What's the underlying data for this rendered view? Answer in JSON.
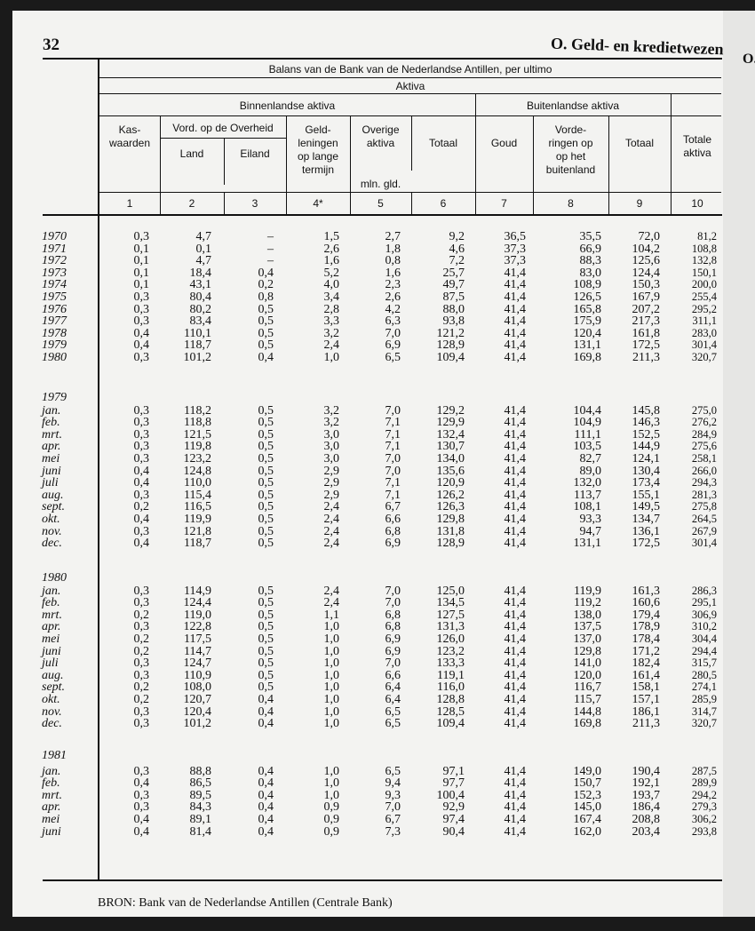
{
  "page_number": "32",
  "section_title": "O. Geld- en kredietwezen",
  "next_page_section": "O.",
  "table": {
    "title": "Balans van de Bank van de Nederlandse Antillen, per ultimo",
    "aktiva": "Aktiva",
    "binnenlandse": "Binnenlandse aktiva",
    "buitenlandse": "Buitenlandse aktiva",
    "kas": "Kas-\nwaarden",
    "vord": "Vord. op de Overheid",
    "land": "Land",
    "eiland": "Eiland",
    "geld": "Geld-\nleningen\nop lange\ntermijn",
    "overige": "Overige\naktiva",
    "totaal": "Totaal",
    "goud": "Goud",
    "vorderingen": "Vorde-\nringen op\nop het\nbuitenland",
    "totaal2": "Totaal",
    "totale": "Totale\naktiva",
    "unit": "mln. gld.",
    "col_numbers": [
      "1",
      "2",
      "3",
      "4*",
      "5",
      "6",
      "7",
      "8",
      "9",
      "10"
    ],
    "blocks": [
      {
        "label": "",
        "rows": [
          [
            "1970",
            "0,3",
            "4,7",
            "–",
            "1,5",
            "2,7",
            "9,2",
            "36,5",
            "35,5",
            "72,0",
            "81,2"
          ],
          [
            "1971",
            "0,1",
            "0,1",
            "–",
            "2,6",
            "1,8",
            "4,6",
            "37,3",
            "66,9",
            "104,2",
            "108,8"
          ],
          [
            "1972",
            "0,1",
            "4,7",
            "–",
            "1,6",
            "0,8",
            "7,2",
            "37,3",
            "88,3",
            "125,6",
            "132,8"
          ],
          [
            "1973",
            "0,1",
            "18,4",
            "0,4",
            "5,2",
            "1,6",
            "25,7",
            "41,4",
            "83,0",
            "124,4",
            "150,1"
          ],
          [
            "1974",
            "0,1",
            "43,1",
            "0,2",
            "4,0",
            "2,3",
            "49,7",
            "41,4",
            "108,9",
            "150,3",
            "200,0"
          ],
          [
            "1975",
            "0,3",
            "80,4",
            "0,8",
            "3,4",
            "2,6",
            "87,5",
            "41,4",
            "126,5",
            "167,9",
            "255,4"
          ],
          [
            "1976",
            "0,3",
            "80,2",
            "0,5",
            "2,8",
            "4,2",
            "88,0",
            "41,4",
            "165,8",
            "207,2",
            "295,2"
          ],
          [
            "1977",
            "0,3",
            "83,4",
            "0,5",
            "3,3",
            "6,3",
            "93,8",
            "41,4",
            "175,9",
            "217,3",
            "311,1"
          ],
          [
            "1978",
            "0,4",
            "110,1",
            "0,5",
            "3,2",
            "7,0",
            "121,2",
            "41,4",
            "120,4",
            "161,8",
            "283,0"
          ],
          [
            "1979",
            "0,4",
            "118,7",
            "0,5",
            "2,4",
            "6,9",
            "128,9",
            "41,4",
            "131,1",
            "172,5",
            "301,4"
          ],
          [
            "1980",
            "0,3",
            "101,2",
            "0,4",
            "1,0",
            "6,5",
            "109,4",
            "41,4",
            "169,8",
            "211,3",
            "320,7"
          ]
        ]
      },
      {
        "label": "1979",
        "rows": [
          [
            "jan.",
            "0,3",
            "118,2",
            "0,5",
            "3,2",
            "7,0",
            "129,2",
            "41,4",
            "104,4",
            "145,8",
            "275,0"
          ],
          [
            "feb.",
            "0,3",
            "118,8",
            "0,5",
            "3,2",
            "7,1",
            "129,9",
            "41,4",
            "104,9",
            "146,3",
            "276,2"
          ],
          [
            "mrt.",
            "0,3",
            "121,5",
            "0,5",
            "3,0",
            "7,1",
            "132,4",
            "41,4",
            "111,1",
            "152,5",
            "284,9"
          ],
          [
            "apr.",
            "0,3",
            "119,8",
            "0,5",
            "3,0",
            "7,1",
            "130,7",
            "41,4",
            "103,5",
            "144,9",
            "275,6"
          ],
          [
            "mei",
            "0,3",
            "123,2",
            "0,5",
            "3,0",
            "7,0",
            "134,0",
            "41,4",
            "82,7",
            "124,1",
            "258,1"
          ],
          [
            "juni",
            "0,4",
            "124,8",
            "0,5",
            "2,9",
            "7,0",
            "135,6",
            "41,4",
            "89,0",
            "130,4",
            "266,0"
          ],
          [
            "juli",
            "0,4",
            "110,0",
            "0,5",
            "2,9",
            "7,1",
            "120,9",
            "41,4",
            "132,0",
            "173,4",
            "294,3"
          ],
          [
            "aug.",
            "0,3",
            "115,4",
            "0,5",
            "2,9",
            "7,1",
            "126,2",
            "41,4",
            "113,7",
            "155,1",
            "281,3"
          ],
          [
            "sept.",
            "0,2",
            "116,5",
            "0,5",
            "2,4",
            "6,7",
            "126,3",
            "41,4",
            "108,1",
            "149,5",
            "275,8"
          ],
          [
            "okt.",
            "0,4",
            "119,9",
            "0,5",
            "2,4",
            "6,6",
            "129,8",
            "41,4",
            "93,3",
            "134,7",
            "264,5"
          ],
          [
            "nov.",
            "0,3",
            "121,8",
            "0,5",
            "2,4",
            "6,8",
            "131,8",
            "41,4",
            "94,7",
            "136,1",
            "267,9"
          ],
          [
            "dec.",
            "0,4",
            "118,7",
            "0,5",
            "2,4",
            "6,9",
            "128,9",
            "41,4",
            "131,1",
            "172,5",
            "301,4"
          ]
        ]
      },
      {
        "label": "1980",
        "rows": [
          [
            "jan.",
            "0,3",
            "114,9",
            "0,5",
            "2,4",
            "7,0",
            "125,0",
            "41,4",
            "119,9",
            "161,3",
            "286,3"
          ],
          [
            "feb.",
            "0,3",
            "124,4",
            "0,5",
            "2,4",
            "7,0",
            "134,5",
            "41,4",
            "119,2",
            "160,6",
            "295,1"
          ],
          [
            "mrt.",
            "0,2",
            "119,0",
            "0,5",
            "1,1",
            "6,8",
            "127,5",
            "41,4",
            "138,0",
            "179,4",
            "306,9"
          ],
          [
            "apr.",
            "0,3",
            "122,8",
            "0,5",
            "1,0",
            "6,8",
            "131,3",
            "41,4",
            "137,5",
            "178,9",
            "310,2"
          ],
          [
            "mei",
            "0,2",
            "117,5",
            "0,5",
            "1,0",
            "6,9",
            "126,0",
            "41,4",
            "137,0",
            "178,4",
            "304,4"
          ],
          [
            "juni",
            "0,2",
            "114,7",
            "0,5",
            "1,0",
            "6,9",
            "123,2",
            "41,4",
            "129,8",
            "171,2",
            "294,4"
          ],
          [
            "juli",
            "0,3",
            "124,7",
            "0,5",
            "1,0",
            "7,0",
            "133,3",
            "41,4",
            "141,0",
            "182,4",
            "315,7"
          ],
          [
            "aug.",
            "0,3",
            "110,9",
            "0,5",
            "1,0",
            "6,6",
            "119,1",
            "41,4",
            "120,0",
            "161,4",
            "280,5"
          ],
          [
            "sept.",
            "0,2",
            "108,0",
            "0,5",
            "1,0",
            "6,4",
            "116,0",
            "41,4",
            "116,7",
            "158,1",
            "274,1"
          ],
          [
            "okt.",
            "0,2",
            "120,7",
            "0,4",
            "1,0",
            "6,4",
            "128,8",
            "41,4",
            "115,7",
            "157,1",
            "285,9"
          ],
          [
            "nov.",
            "0,3",
            "120,4",
            "0,4",
            "1,0",
            "6,5",
            "128,5",
            "41,4",
            "144,8",
            "186,1",
            "314,7"
          ],
          [
            "dec.",
            "0,3",
            "101,2",
            "0,4",
            "1,0",
            "6,5",
            "109,4",
            "41,4",
            "169,8",
            "211,3",
            "320,7"
          ]
        ]
      },
      {
        "label": "1981",
        "rows": [
          [
            "jan.",
            "0,3",
            "88,8",
            "0,4",
            "1,0",
            "6,5",
            "97,1",
            "41,4",
            "149,0",
            "190,4",
            "287,5"
          ],
          [
            "feb.",
            "0,4",
            "86,5",
            "0,4",
            "1,0",
            "9,4",
            "97,7",
            "41,4",
            "150,7",
            "192,1",
            "289,9"
          ],
          [
            "mrt.",
            "0,3",
            "89,5",
            "0,4",
            "1,0",
            "9,3",
            "100,4",
            "41,4",
            "152,3",
            "193,7",
            "294,2"
          ],
          [
            "apr.",
            "0,3",
            "84,3",
            "0,4",
            "0,9",
            "7,0",
            "92,9",
            "41,4",
            "145,0",
            "186,4",
            "279,3"
          ],
          [
            "mei",
            "0,4",
            "89,1",
            "0,4",
            "0,9",
            "6,7",
            "97,4",
            "41,4",
            "167,4",
            "208,8",
            "306,2"
          ],
          [
            "juni",
            "0,4",
            "81,4",
            "0,4",
            "0,9",
            "7,3",
            "90,4",
            "41,4",
            "162,0",
            "203,4",
            "293,8"
          ]
        ]
      }
    ]
  },
  "source": "BRON:  Bank van de Nederlandse Antillen (Centrale Bank)"
}
